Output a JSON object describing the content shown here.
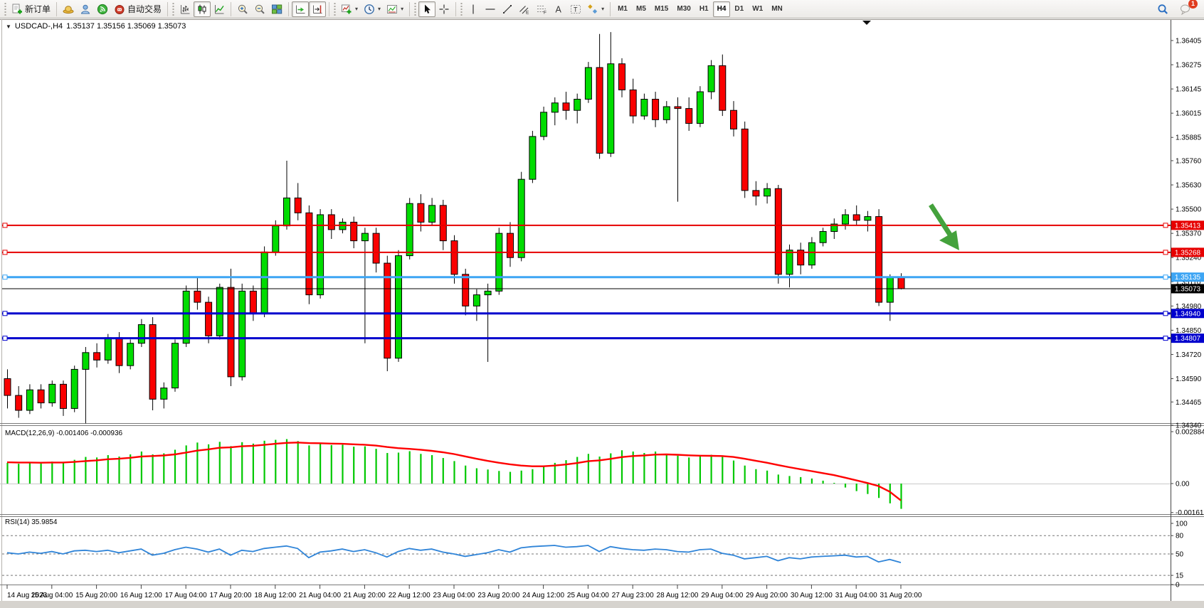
{
  "toolbar": {
    "groups": [
      {
        "items": [
          {
            "icon": "new-order-icon",
            "label": "新订单",
            "pressed": false
          }
        ]
      },
      {
        "items": [
          {
            "icon": "hat-icon"
          },
          {
            "icon": "profile-icon"
          },
          {
            "icon": "signals-icon"
          },
          {
            "icon": "autotrade-icon",
            "label": "自动交易"
          }
        ]
      },
      {
        "items": [
          {
            "icon": "bar-chart-icon"
          },
          {
            "icon": "candle-chart-icon",
            "pressed": true
          },
          {
            "icon": "line-chart-icon"
          }
        ]
      },
      {
        "items": [
          {
            "icon": "zoom-in-icon"
          },
          {
            "icon": "zoom-out-icon"
          },
          {
            "icon": "tile-windows-icon"
          }
        ]
      },
      {
        "items": [
          {
            "icon": "auto-scroll-icon",
            "pressed": true
          },
          {
            "icon": "chart-shift-icon",
            "pressed": true
          }
        ]
      },
      {
        "items": [
          {
            "icon": "indicators-icon",
            "dropdown": true
          },
          {
            "icon": "periods-icon",
            "dropdown": true
          },
          {
            "icon": "templates-icon",
            "dropdown": true
          }
        ]
      },
      {
        "items": [
          {
            "icon": "cursor-icon",
            "pressed": true
          },
          {
            "icon": "crosshair-icon"
          }
        ]
      },
      {
        "items": [
          {
            "icon": "vline-icon"
          },
          {
            "icon": "hline-icon"
          },
          {
            "icon": "trendline-icon"
          },
          {
            "icon": "channel-icon"
          },
          {
            "icon": "fibonacci-icon"
          },
          {
            "icon": "text-icon"
          },
          {
            "icon": "text-label-icon"
          },
          {
            "icon": "arrows-icon",
            "dropdown": true
          }
        ]
      }
    ],
    "timeframes": [
      "M1",
      "M5",
      "M15",
      "M30",
      "H1",
      "H4",
      "D1",
      "W1",
      "MN"
    ],
    "selected_timeframe": "H4",
    "right_icons": [
      {
        "icon": "search-icon"
      },
      {
        "icon": "chat-icon",
        "badge": "1"
      }
    ]
  },
  "chart": {
    "symbol_period": "USDCAD-,H4",
    "ohlc_text": "1.35137 1.35156 1.35069 1.35073"
  },
  "indicators": {
    "macd": {
      "display": "MACD(12,26,9) -0.001406 -0.000936"
    },
    "rsi": {
      "display": "RSI(14) 35.9854"
    }
  },
  "chart_data": {
    "type": "candlestick",
    "symbol": "USDCAD",
    "timeframe": "H4",
    "current_bar": {
      "open": 1.35137,
      "high": 1.35156,
      "low": 1.35069,
      "close": 1.35073
    },
    "up_color": "#00dc00",
    "down_color": "#fa0000",
    "candles": [
      [
        1.3459,
        1.3464,
        1.3443,
        1.345
      ],
      [
        1.345,
        1.3455,
        1.3438,
        1.3442
      ],
      [
        1.3442,
        1.3456,
        1.344,
        1.3453
      ],
      [
        1.3453,
        1.3456,
        1.3443,
        1.3446
      ],
      [
        1.3446,
        1.3458,
        1.3444,
        1.3456
      ],
      [
        1.3456,
        1.3458,
        1.3439,
        1.3443
      ],
      [
        1.3443,
        1.3466,
        1.3441,
        1.3464
      ],
      [
        1.3464,
        1.3476,
        1.3435,
        1.3473
      ],
      [
        1.3473,
        1.3478,
        1.3465,
        1.3469
      ],
      [
        1.3469,
        1.3483,
        1.3467,
        1.3481
      ],
      [
        1.3481,
        1.3484,
        1.3462,
        1.3466
      ],
      [
        1.3466,
        1.348,
        1.3464,
        1.3478
      ],
      [
        1.3478,
        1.3491,
        1.3476,
        1.3488
      ],
      [
        1.3488,
        1.3492,
        1.3442,
        1.3448
      ],
      [
        1.3448,
        1.3457,
        1.3443,
        1.3454
      ],
      [
        1.3454,
        1.348,
        1.3452,
        1.3478
      ],
      [
        1.3478,
        1.3509,
        1.3476,
        1.3506
      ],
      [
        1.3506,
        1.3513,
        1.3496,
        1.35
      ],
      [
        1.35,
        1.3503,
        1.3478,
        1.3482
      ],
      [
        1.3482,
        1.351,
        1.348,
        1.3508
      ],
      [
        1.3508,
        1.3518,
        1.3455,
        1.346
      ],
      [
        1.346,
        1.351,
        1.3458,
        1.3506
      ],
      [
        1.3506,
        1.3509,
        1.349,
        1.3494
      ],
      [
        1.3494,
        1.353,
        1.3492,
        1.3527
      ],
      [
        1.3527,
        1.3544,
        1.3525,
        1.3541
      ],
      [
        1.3541,
        1.3576,
        1.3539,
        1.3556
      ],
      [
        1.3556,
        1.3564,
        1.3544,
        1.3548
      ],
      [
        1.3548,
        1.3552,
        1.3499,
        1.3504
      ],
      [
        1.3504,
        1.355,
        1.3502,
        1.3547
      ],
      [
        1.3547,
        1.355,
        1.3534,
        1.3539
      ],
      [
        1.3539,
        1.3545,
        1.3537,
        1.3543
      ],
      [
        1.3543,
        1.3546,
        1.3529,
        1.3533
      ],
      [
        1.3533,
        1.354,
        1.3478,
        1.3537
      ],
      [
        1.3537,
        1.354,
        1.3516,
        1.3521
      ],
      [
        1.3521,
        1.3525,
        1.3463,
        1.347
      ],
      [
        1.347,
        1.3528,
        1.3468,
        1.3525
      ],
      [
        1.3525,
        1.3556,
        1.3523,
        1.3553
      ],
      [
        1.3553,
        1.3558,
        1.3538,
        1.3543
      ],
      [
        1.3543,
        1.3556,
        1.3541,
        1.3552
      ],
      [
        1.3552,
        1.3555,
        1.3528,
        1.3533
      ],
      [
        1.3533,
        1.3536,
        1.351,
        1.3515
      ],
      [
        1.3515,
        1.3518,
        1.3493,
        1.3498
      ],
      [
        1.3498,
        1.3507,
        1.349,
        1.3504
      ],
      [
        1.3504,
        1.351,
        1.3468,
        1.3506
      ],
      [
        1.3506,
        1.354,
        1.3504,
        1.3537
      ],
      [
        1.3537,
        1.3543,
        1.3519,
        1.3524
      ],
      [
        1.3524,
        1.357,
        1.3522,
        1.3566
      ],
      [
        1.3566,
        1.3592,
        1.3564,
        1.3589
      ],
      [
        1.3589,
        1.3605,
        1.3587,
        1.3602
      ],
      [
        1.3602,
        1.361,
        1.3595,
        1.3607
      ],
      [
        1.3607,
        1.3613,
        1.3598,
        1.3603
      ],
      [
        1.3603,
        1.3612,
        1.3596,
        1.3609
      ],
      [
        1.3609,
        1.3629,
        1.3607,
        1.3626
      ],
      [
        1.3626,
        1.3644,
        1.3577,
        1.358
      ],
      [
        1.358,
        1.3645,
        1.3578,
        1.3628
      ],
      [
        1.3628,
        1.3631,
        1.361,
        1.3614
      ],
      [
        1.3614,
        1.362,
        1.3596,
        1.36
      ],
      [
        1.36,
        1.3612,
        1.3598,
        1.3609
      ],
      [
        1.3609,
        1.3613,
        1.3594,
        1.3598
      ],
      [
        1.3598,
        1.3608,
        1.3596,
        1.3605
      ],
      [
        1.3605,
        1.361,
        1.3554,
        1.3604
      ],
      [
        1.3604,
        1.361,
        1.3592,
        1.3596
      ],
      [
        1.3596,
        1.3616,
        1.3594,
        1.3613
      ],
      [
        1.3613,
        1.363,
        1.3609,
        1.3627
      ],
      [
        1.3627,
        1.3633,
        1.36,
        1.3603
      ],
      [
        1.3603,
        1.3608,
        1.3589,
        1.3593
      ],
      [
        1.3593,
        1.3597,
        1.3556,
        1.356
      ],
      [
        1.356,
        1.3565,
        1.3552,
        1.3557
      ],
      [
        1.3557,
        1.3564,
        1.3553,
        1.3561
      ],
      [
        1.3561,
        1.3563,
        1.351,
        1.3515
      ],
      [
        1.3515,
        1.3531,
        1.3508,
        1.3528
      ],
      [
        1.3528,
        1.3532,
        1.3515,
        1.352
      ],
      [
        1.352,
        1.3535,
        1.3518,
        1.3532
      ],
      [
        1.3532,
        1.354,
        1.353,
        1.3538
      ],
      [
        1.3538,
        1.3545,
        1.3534,
        1.3542
      ],
      [
        1.3542,
        1.355,
        1.3539,
        1.3547
      ],
      [
        1.3547,
        1.3552,
        1.3541,
        1.3544
      ],
      [
        1.3544,
        1.3549,
        1.3538,
        1.3546
      ],
      [
        1.3546,
        1.355,
        1.3498,
        1.35
      ],
      [
        1.35,
        1.3515,
        1.349,
        1.35137
      ],
      [
        1.35137,
        1.35156,
        1.35069,
        1.35073
      ]
    ],
    "price_axis": {
      "ticks": [
        "1.36405",
        "1.36275",
        "1.36145",
        "1.36015",
        "1.35885",
        "1.35760",
        "1.35630",
        "1.35500",
        "1.35370",
        "1.35240",
        "1.35110",
        "1.34980",
        "1.34850",
        "1.34720",
        "1.34590",
        "1.34465",
        "1.34340"
      ]
    },
    "hlines": [
      {
        "price": 1.35413,
        "label": "1.35413",
        "color": "#e60000",
        "width": 2,
        "badge_bg": "#e60000"
      },
      {
        "price": 1.35268,
        "label": "1.35268",
        "color": "#e60000",
        "width": 2,
        "badge_bg": "#e60000"
      },
      {
        "price": 1.35135,
        "label": "1.35135",
        "color": "#3da5f4",
        "width": 3,
        "badge_bg": "#3da5f4"
      },
      {
        "price": 1.35073,
        "label": "1.35073",
        "color": "#000000",
        "width": 1,
        "badge_bg": "#000000",
        "is_current_price": true
      },
      {
        "price": 1.3494,
        "label": "1.34940",
        "color": "#0000cd",
        "width": 3,
        "badge_bg": "#0000cd"
      },
      {
        "price": 1.34807,
        "label": "1.34807",
        "color": "#0000cd",
        "width": 3,
        "badge_bg": "#0000cd"
      }
    ],
    "time_labels": [
      "14 Aug 2023",
      "15 Aug 04:00",
      "15 Aug 20:00",
      "16 Aug 12:00",
      "17 Aug 04:00",
      "17 Aug 20:00",
      "18 Aug 12:00",
      "21 Aug 04:00",
      "21 Aug 20:00",
      "22 Aug 12:00",
      "23 Aug 04:00",
      "23 Aug 20:00",
      "24 Aug 12:00",
      "25 Aug 04:00",
      "27 Aug 23:00",
      "28 Aug 12:00",
      "29 Aug 04:00",
      "29 Aug 20:00",
      "30 Aug 12:00",
      "31 Aug 04:00",
      "31 Aug 20:00"
    ],
    "macd": {
      "params": "12,26,9",
      "main_value": -0.001406,
      "signal_value": -0.000936,
      "histogram_color": "#00c800",
      "signal_color": "#ff0000",
      "axis_ticks": [
        {
          "label": "0.002884",
          "value": 0.002884
        },
        {
          "label": "0.00",
          "value": 0
        },
        {
          "label": "-0.00161",
          "value": -0.00161
        }
      ],
      "histogram": [
        0.00115,
        0.0011,
        0.00118,
        0.00112,
        0.00122,
        0.00115,
        0.00132,
        0.00148,
        0.00145,
        0.00158,
        0.0015,
        0.00162,
        0.00178,
        0.00162,
        0.00168,
        0.00188,
        0.00212,
        0.00228,
        0.00218,
        0.00232,
        0.00208,
        0.0023,
        0.00222,
        0.00238,
        0.00243,
        0.00247,
        0.00236,
        0.00212,
        0.00222,
        0.00214,
        0.00216,
        0.00205,
        0.00207,
        0.00193,
        0.0017,
        0.00172,
        0.0018,
        0.00165,
        0.00158,
        0.00142,
        0.00125,
        0.001,
        0.00085,
        0.00078,
        0.0007,
        0.00065,
        0.00072,
        0.0008,
        0.00095,
        0.00115,
        0.0013,
        0.00148,
        0.00165,
        0.0015,
        0.00168,
        0.00185,
        0.00178,
        0.0017,
        0.00178,
        0.00165,
        0.00155,
        0.00145,
        0.00152,
        0.0016,
        0.00148,
        0.00128,
        0.001,
        0.0008,
        0.00072,
        0.0005,
        0.00042,
        0.00036,
        0.00028,
        0.00016,
        4e-05,
        -0.00022,
        -0.00042,
        -0.00058,
        -0.0008,
        -0.0011,
        -0.001406
      ],
      "signal": [
        0.00118,
        0.00117,
        0.00117,
        0.00116,
        0.00117,
        0.00117,
        0.0012,
        0.00125,
        0.00129,
        0.00135,
        0.00138,
        0.00143,
        0.0015,
        0.00153,
        0.00156,
        0.00162,
        0.00172,
        0.00183,
        0.0019,
        0.00199,
        0.00201,
        0.00207,
        0.0021,
        0.00215,
        0.00221,
        0.00226,
        0.00228,
        0.00225,
        0.00224,
        0.00222,
        0.00221,
        0.00218,
        0.00216,
        0.00211,
        0.00203,
        0.00197,
        0.00193,
        0.00188,
        0.00182,
        0.00174,
        0.00164,
        0.00151,
        0.00138,
        0.00126,
        0.00116,
        0.00107,
        0.001,
        0.00096,
        0.00096,
        0.001,
        0.00106,
        0.00114,
        0.00124,
        0.00129,
        0.00137,
        0.00147,
        0.00153,
        0.00156,
        0.00161,
        0.00162,
        0.0016,
        0.00157,
        0.00155,
        0.00154,
        0.00153,
        0.00148,
        0.00138,
        0.00127,
        0.00116,
        0.00103,
        0.00091,
        0.0008,
        0.00069,
        0.00058,
        0.00047,
        0.00033,
        0.00018,
        3e-05,
        -0.00014,
        -0.00045,
        -0.000936
      ]
    },
    "rsi": {
      "period": 14,
      "value": 35.9854,
      "line_color": "#2f84d8",
      "levels": [
        80,
        50,
        15
      ],
      "axis_ticks": [
        {
          "label": "100",
          "value": 100
        },
        {
          "label": "80",
          "value": 80
        },
        {
          "label": "50",
          "value": 50
        },
        {
          "label": "15",
          "value": 15
        },
        {
          "label": "0",
          "value": 0
        }
      ],
      "series": [
        52,
        50,
        53,
        51,
        54,
        50,
        55,
        56,
        54,
        56,
        52,
        55,
        58,
        48,
        51,
        57,
        61,
        58,
        53,
        58,
        48,
        56,
        54,
        59,
        61,
        63,
        59,
        44,
        53,
        55,
        58,
        54,
        57,
        52,
        45,
        54,
        59,
        56,
        58,
        53,
        50,
        46,
        49,
        52,
        57,
        53,
        60,
        62,
        63,
        64,
        61,
        62,
        64,
        54,
        62,
        59,
        57,
        56,
        58,
        57,
        54,
        53,
        57,
        58,
        51,
        48,
        42,
        44,
        46,
        39,
        44,
        42,
        45,
        46,
        47,
        48,
        45,
        46,
        37,
        41,
        35.9854
      ]
    },
    "annotations": [
      {
        "type": "arrow",
        "name": "sell-signal-arrow",
        "color": "#44a23c",
        "direction": "down-right"
      }
    ]
  }
}
